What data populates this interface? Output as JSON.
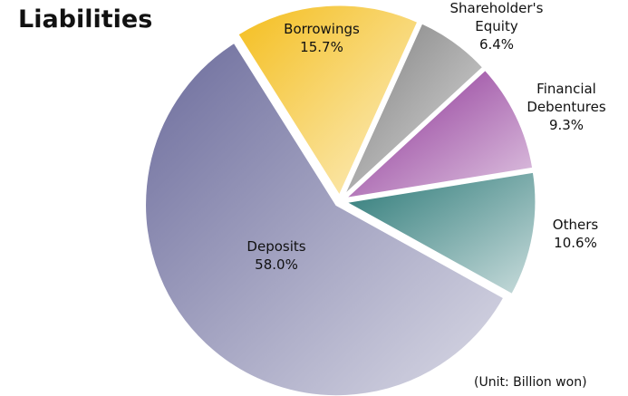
{
  "chart_data": {
    "type": "pie",
    "title": "Liabilities",
    "subtitle": "(Unit: Billion won)",
    "categories": [
      "Deposits",
      "Borrowings",
      "Shareholder's Equity",
      "Financial Debentures",
      "Others"
    ],
    "values": [
      58.0,
      15.7,
      6.4,
      9.3,
      10.6
    ],
    "value_labels": [
      "58.0%",
      "15.7%",
      "6.4%",
      "9.3%",
      "10.6%"
    ],
    "colors": [
      "#6c6c9c",
      "#f4be1e",
      "#7c7c7c",
      "#872890",
      "#2a7876"
    ]
  }
}
